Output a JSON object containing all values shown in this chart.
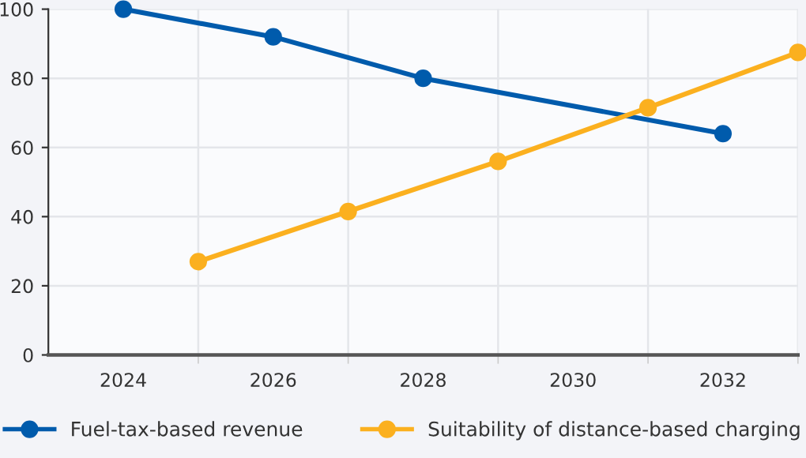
{
  "chart_data": {
    "type": "line",
    "marker": "circle",
    "line_style": "solid",
    "grid": true,
    "legend": "bottom",
    "xlim": [
      2023,
      2033
    ],
    "xticks": [
      {
        "value": 2024,
        "label": "2024"
      },
      {
        "value": 2025,
        "label": null
      },
      {
        "value": 2026,
        "label": "2026"
      },
      {
        "value": 2027,
        "label": null
      },
      {
        "value": 2028,
        "label": "2028"
      },
      {
        "value": 2029,
        "label": null
      },
      {
        "value": 2030,
        "label": "2030"
      },
      {
        "value": 2031,
        "label": null
      },
      {
        "value": 2032,
        "label": "2032"
      },
      {
        "value": 2033,
        "label": null
      }
    ],
    "ylim": [
      0,
      100
    ],
    "yticks": [
      0,
      20,
      40,
      60,
      80,
      100
    ],
    "series": [
      {
        "name": "Fuel-tax-based revenue",
        "color": "#005bac",
        "x": [
          2024,
          2026,
          2028,
          2032
        ],
        "values": [
          100,
          92,
          80,
          64
        ]
      },
      {
        "name": "Suitability of distance-based charging",
        "color": "#fbb01f",
        "x": [
          2025,
          2027,
          2029,
          2031,
          2033
        ],
        "values": [
          27,
          41.5,
          56,
          71.5,
          87.5
        ]
      }
    ]
  }
}
